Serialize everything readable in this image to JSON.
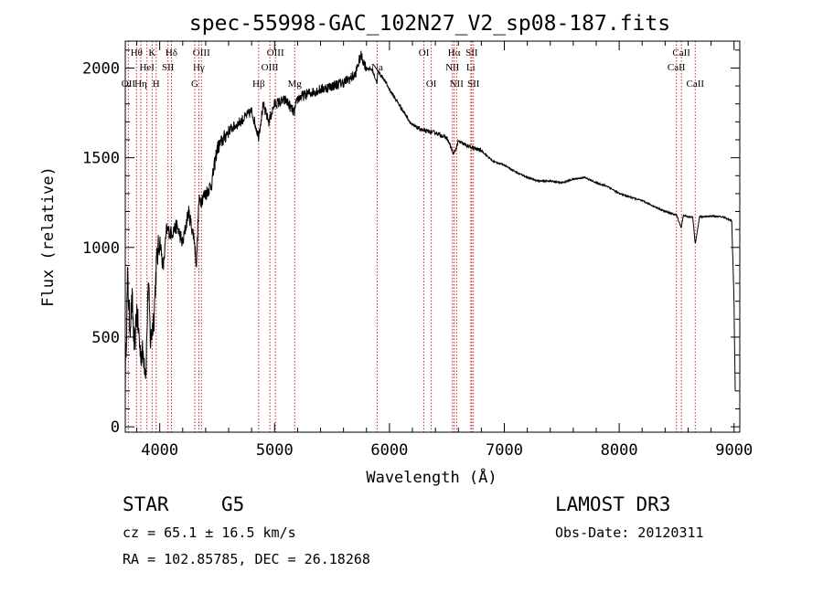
{
  "chart_data": {
    "type": "line",
    "title": "spec-55998-GAC_102N27_V2_sp08-187.fits",
    "xlabel": "Wavelength (Å)",
    "ylabel": "Flux (relative)",
    "xlim": [
      3700,
      9050
    ],
    "ylim": [
      -30,
      2150
    ],
    "x_ticks": [
      4000,
      5000,
      6000,
      7000,
      8000,
      9000
    ],
    "y_ticks": [
      0,
      500,
      1000,
      1500,
      2000
    ],
    "x_tick_labels": [
      "4000",
      "5000",
      "6000",
      "7000",
      "8000",
      "9000"
    ],
    "y_tick_labels": [
      "0",
      "500",
      "1000",
      "1500",
      "2000"
    ],
    "grid": false,
    "series": [
      {
        "name": "flux",
        "x": [
          3700,
          3720,
          3740,
          3760,
          3780,
          3800,
          3830,
          3860,
          3880,
          3900,
          3920,
          3950,
          3970,
          4000,
          4030,
          4060,
          4100,
          4150,
          4200,
          4250,
          4300,
          4320,
          4340,
          4400,
          4450,
          4500,
          4600,
          4700,
          4800,
          4860,
          4900,
          4950,
          5000,
          5100,
          5170,
          5200,
          5300,
          5400,
          5500,
          5600,
          5700,
          5750,
          5800,
          5850,
          5890,
          5900,
          5950,
          6000,
          6100,
          6200,
          6300,
          6400,
          6500,
          6560,
          6600,
          6700,
          6800,
          6900,
          7000,
          7100,
          7200,
          7300,
          7400,
          7500,
          7600,
          7700,
          7800,
          7900,
          8000,
          8100,
          8200,
          8300,
          8400,
          8500,
          8540,
          8560,
          8600,
          8640,
          8662,
          8700,
          8800,
          8900,
          8980,
          9000,
          9010
        ],
        "y": [
          250,
          820,
          560,
          700,
          420,
          650,
          420,
          400,
          300,
          820,
          470,
          620,
          900,
          1050,
          880,
          1100,
          1080,
          1120,
          1020,
          1200,
          1050,
          900,
          1250,
          1300,
          1350,
          1550,
          1650,
          1700,
          1760,
          1620,
          1790,
          1700,
          1800,
          1820,
          1750,
          1830,
          1860,
          1880,
          1900,
          1920,
          1960,
          2070,
          2000,
          1990,
          1920,
          1980,
          1940,
          1880,
          1780,
          1680,
          1650,
          1640,
          1610,
          1520,
          1590,
          1560,
          1540,
          1480,
          1460,
          1420,
          1390,
          1370,
          1370,
          1360,
          1380,
          1390,
          1360,
          1340,
          1300,
          1280,
          1260,
          1230,
          1200,
          1180,
          1110,
          1180,
          1170,
          1170,
          1020,
          1170,
          1175,
          1170,
          1150,
          700,
          200
        ]
      }
    ],
    "spectral_lines": [
      {
        "label": "Hθ",
        "wavelength": 3798,
        "row": 1
      },
      {
        "label": "OII",
        "wavelength": 3727,
        "row": 3
      },
      {
        "label": "Hη",
        "wavelength": 3835,
        "row": 3
      },
      {
        "label": "HeI",
        "wavelength": 3889,
        "row": 2
      },
      {
        "label": "K",
        "wavelength": 3934,
        "row": 1
      },
      {
        "label": "SII",
        "wavelength": 4072,
        "row": 2
      },
      {
        "label": "H",
        "wavelength": 3969,
        "row": 3
      },
      {
        "label": "Hδ",
        "wavelength": 4102,
        "row": 1
      },
      {
        "label": "OIII",
        "wavelength": 4363,
        "row": 1
      },
      {
        "label": "Hγ",
        "wavelength": 4340,
        "row": 2
      },
      {
        "label": "G",
        "wavelength": 4305,
        "row": 3
      },
      {
        "label": "OIII",
        "wavelength": 5007,
        "row": 1
      },
      {
        "label": "OIII",
        "wavelength": 4959,
        "row": 2
      },
      {
        "label": "Hβ",
        "wavelength": 4861,
        "row": 3
      },
      {
        "label": "Mg",
        "wavelength": 5175,
        "row": 3
      },
      {
        "label": "Na",
        "wavelength": 5893,
        "row": 2
      },
      {
        "label": "OI",
        "wavelength": 6300,
        "row": 1
      },
      {
        "label": "OI",
        "wavelength": 6364,
        "row": 3
      },
      {
        "label": "Hα",
        "wavelength": 6563,
        "row": 1
      },
      {
        "label": "SII",
        "wavelength": 6716,
        "row": 1
      },
      {
        "label": "NII",
        "wavelength": 6548,
        "row": 2
      },
      {
        "label": "Li",
        "wavelength": 6708,
        "row": 2
      },
      {
        "label": "NII",
        "wavelength": 6584,
        "row": 3
      },
      {
        "label": "SII",
        "wavelength": 6731,
        "row": 3
      },
      {
        "label": "CaII",
        "wavelength": 8542,
        "row": 1
      },
      {
        "label": "CaII",
        "wavelength": 8498,
        "row": 2
      },
      {
        "label": "CaII",
        "wavelength": 8662,
        "row": 3
      }
    ]
  },
  "info": {
    "object_class": "STAR",
    "subclass": "G5",
    "survey": "LAMOST DR3",
    "cz": "cz = 65.1 ± 16.5 km/s",
    "obs_date": "Obs-Date: 20120311",
    "coords": "RA = 102.85785, DEC =  26.18268"
  }
}
